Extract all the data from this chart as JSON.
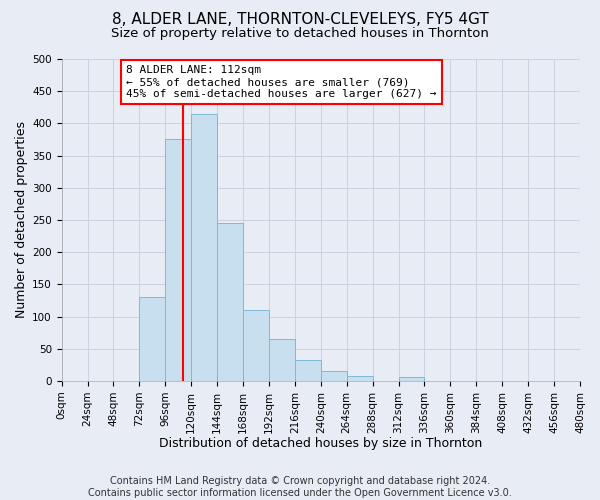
{
  "title": "8, ALDER LANE, THORNTON-CLEVELEYS, FY5 4GT",
  "subtitle": "Size of property relative to detached houses in Thornton",
  "xlabel": "Distribution of detached houses by size in Thornton",
  "ylabel": "Number of detached properties",
  "footer_line1": "Contains HM Land Registry data © Crown copyright and database right 2024.",
  "footer_line2": "Contains public sector information licensed under the Open Government Licence v3.0.",
  "bin_edges": [
    0,
    24,
    48,
    72,
    96,
    120,
    144,
    168,
    192,
    216,
    240,
    264,
    288,
    312,
    336,
    360,
    384,
    408,
    432,
    456,
    480
  ],
  "bin_labels": [
    "0sqm",
    "24sqm",
    "48sqm",
    "72sqm",
    "96sqm",
    "120sqm",
    "144sqm",
    "168sqm",
    "192sqm",
    "216sqm",
    "240sqm",
    "264sqm",
    "288sqm",
    "312sqm",
    "336sqm",
    "360sqm",
    "384sqm",
    "408sqm",
    "432sqm",
    "456sqm",
    "480sqm"
  ],
  "counts": [
    0,
    0,
    0,
    130,
    375,
    415,
    245,
    110,
    65,
    33,
    16,
    7,
    0,
    6,
    0,
    0,
    0,
    0,
    0,
    0
  ],
  "bar_color": "#c8dff0",
  "bar_edge_color": "#7fb8d8",
  "property_size": 112,
  "vline_color": "red",
  "annotation_line1": "8 ALDER LANE: 112sqm",
  "annotation_line2": "← 55% of detached houses are smaller (769)",
  "annotation_line3": "45% of semi-detached houses are larger (627) →",
  "annotation_box_color": "white",
  "annotation_box_edge_color": "red",
  "ylim": [
    0,
    500
  ],
  "ytick_step": 50,
  "background_color": "#e8ecf5",
  "grid_color": "#c8cedd",
  "title_fontsize": 11,
  "subtitle_fontsize": 9.5,
  "label_fontsize": 9,
  "tick_fontsize": 7.5,
  "footer_fontsize": 7
}
